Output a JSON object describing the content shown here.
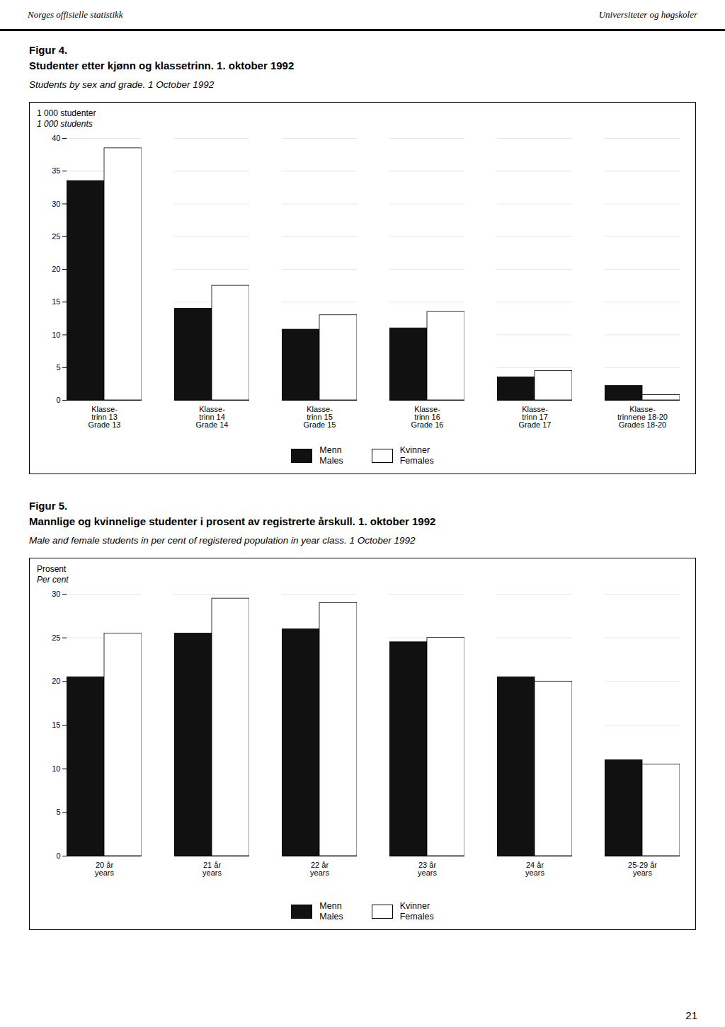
{
  "header": [
    "Norges offisielle statistikk",
    "Universiteter og høgskoler"
  ],
  "page_number": "21",
  "chart_data": [
    {
      "type": "bar",
      "title": [
        "Figur 4.",
        "Studenter etter kjønn og klassetrinn. 1. oktober 1992"
      ],
      "subtitle": "Students by sex and grade. 1 October 1992",
      "ylabel": [
        "1 000 studenter",
        "1 000 students"
      ],
      "categories": [
        "Klasse-\ntrinn 13\nGrade 13",
        "Klasse-\ntrinn 14\nGrade 14",
        "Klasse-\ntrinn 15\nGrade 15",
        "Klasse-\ntrinn 16\nGrade 16",
        "Klasse-\ntrinn 17\nGrade 17",
        "Klasse-\ntrinnene 18-20\nGrades 18-20"
      ],
      "series": [
        {
          "name": "Menn\nMales",
          "color": "#111111",
          "values": [
            33.5,
            14.0,
            10.8,
            11.0,
            3.5,
            2.2
          ]
        },
        {
          "name": "Kvinner\nFemales",
          "color": "#ffffff",
          "values": [
            38.5,
            17.5,
            13.0,
            13.5,
            4.5,
            0.8
          ]
        }
      ],
      "ylim": [
        0,
        40
      ],
      "yticks": [
        0,
        5,
        10,
        15,
        20,
        25,
        30,
        35,
        40
      ],
      "grid": true,
      "legend": "bottom"
    },
    {
      "type": "bar",
      "title": [
        "Figur 5.",
        "Mannlige og kvinnelige studenter i prosent av registrerte årskull. 1. oktober 1992"
      ],
      "subtitle": "Male and female students in per cent of registered population in year class.   1 October 1992",
      "ylabel": [
        "Prosent",
        "Per cent"
      ],
      "categories": [
        "20 år\nyears",
        "21 år\nyears",
        "22 år\nyears",
        "23 år\nyears",
        "24 år\nyears",
        "25-29 år\nyears"
      ],
      "series": [
        {
          "name": "Menn\nMales",
          "color": "#111111",
          "values": [
            20.5,
            25.5,
            26.0,
            24.5,
            20.5,
            11.0
          ]
        },
        {
          "name": "Kvinner\nFemales",
          "color": "#ffffff",
          "values": [
            25.5,
            29.5,
            29.0,
            25.0,
            20.0,
            10.5
          ]
        }
      ],
      "ylim": [
        0,
        30
      ],
      "yticks": [
        0,
        5,
        10,
        15,
        20,
        25,
        30
      ],
      "grid": true,
      "legend": "bottom"
    }
  ]
}
